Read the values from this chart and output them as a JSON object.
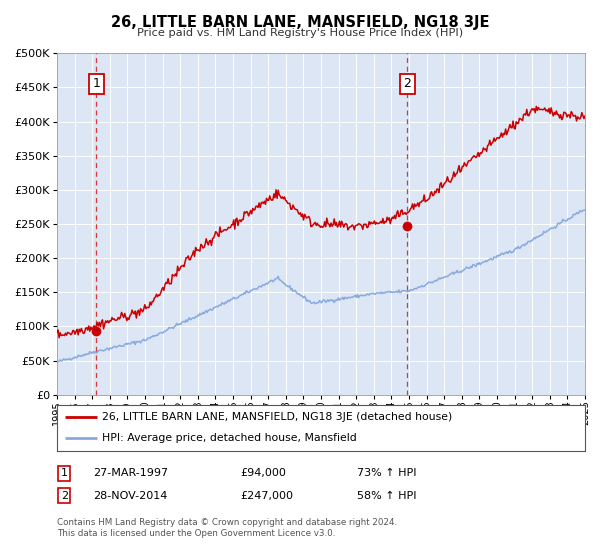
{
  "title": "26, LITTLE BARN LANE, MANSFIELD, NG18 3JE",
  "subtitle": "Price paid vs. HM Land Registry's House Price Index (HPI)",
  "plot_bg_color": "#dce6f5",
  "legend_line1": "26, LITTLE BARN LANE, MANSFIELD, NG18 3JE (detached house)",
  "legend_line2": "HPI: Average price, detached house, Mansfield",
  "note_line1": "Contains HM Land Registry data © Crown copyright and database right 2024.",
  "note_line2": "This data is licensed under the Open Government Licence v3.0.",
  "sale_color": "#cc0000",
  "hpi_color": "#88aadd",
  "marker_color": "#cc0000",
  "dashed_color": "#cc0000",
  "ylim": [
    0,
    500000
  ],
  "xlim": [
    1995,
    2025
  ],
  "yticks": [
    0,
    50000,
    100000,
    150000,
    200000,
    250000,
    300000,
    350000,
    400000,
    450000,
    500000
  ],
  "xtick_years": [
    1995,
    1996,
    1997,
    1998,
    1999,
    2000,
    2001,
    2002,
    2003,
    2004,
    2005,
    2006,
    2007,
    2008,
    2009,
    2010,
    2011,
    2012,
    2013,
    2014,
    2015,
    2016,
    2017,
    2018,
    2019,
    2020,
    2021,
    2022,
    2023,
    2024,
    2025
  ],
  "sale1_x": 1997.23,
  "sale1_y": 94000,
  "sale2_x": 2014.91,
  "sale2_y": 247000,
  "annotation1_label": "1",
  "annotation2_label": "2",
  "table_row1": [
    "1",
    "27-MAR-1997",
    "£94,000",
    "73% ↑ HPI"
  ],
  "table_row2": [
    "2",
    "28-NOV-2014",
    "£247,000",
    "58% ↑ HPI"
  ]
}
